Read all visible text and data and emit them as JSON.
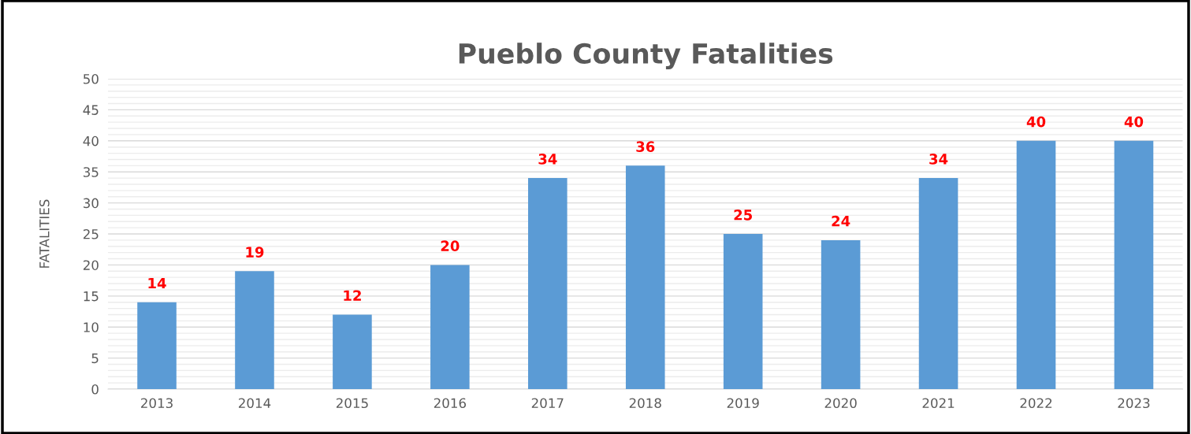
{
  "chart_data": {
    "type": "bar",
    "title": "Pueblo County Fatalities",
    "ylabel": "FATALITIES",
    "categories": [
      "2013",
      "2014",
      "2015",
      "2016",
      "2017",
      "2018",
      "2019",
      "2020",
      "2021",
      "2022",
      "2023"
    ],
    "values": [
      14,
      19,
      12,
      20,
      34,
      36,
      25,
      24,
      34,
      40,
      40
    ],
    "color": "#5b9bd5",
    "ylim": [
      0,
      50
    ],
    "yticks": [
      0,
      {
        "value": 1,
        "label": null
      },
      {
        "value": 2,
        "label": null
      },
      {
        "value": 3,
        "label": null
      },
      {
        "value": 4,
        "label": null
      },
      5,
      {
        "value": 6,
        "label": null
      },
      {
        "value": 7,
        "label": null
      },
      {
        "value": 8,
        "label": null
      },
      {
        "value": 9,
        "label": null
      },
      10,
      {
        "value": 11,
        "label": null
      },
      {
        "value": 12,
        "label": null
      },
      {
        "value": 13,
        "label": null
      },
      {
        "value": 14,
        "label": null
      },
      15,
      {
        "value": 16,
        "label": null
      },
      {
        "value": 17,
        "label": null
      },
      {
        "value": 18,
        "label": null
      },
      {
        "value": 19,
        "label": null
      },
      20,
      {
        "value": 21,
        "label": null
      },
      {
        "value": 22,
        "label": null
      },
      {
        "value": 23,
        "label": null
      },
      {
        "value": 24,
        "label": null
      },
      25,
      {
        "value": 26,
        "label": null
      },
      {
        "value": 27,
        "label": null
      },
      {
        "value": 28,
        "label": null
      },
      {
        "value": 29,
        "label": null
      },
      30,
      {
        "value": 31,
        "label": null
      },
      {
        "value": 32,
        "label": null
      },
      {
        "value": 33,
        "label": null
      },
      {
        "value": 34,
        "label": null
      },
      35,
      {
        "value": 36,
        "label": null
      },
      {
        "value": 37,
        "label": null
      },
      {
        "value": 38,
        "label": null
      },
      {
        "value": 39,
        "label": null
      },
      40,
      {
        "value": 41,
        "label": null
      },
      {
        "value": 42,
        "label": null
      },
      {
        "value": 43,
        "label": null
      },
      {
        "value": 44,
        "label": null
      },
      45,
      {
        "value": 46,
        "label": null
      },
      {
        "value": 47,
        "label": null
      },
      {
        "value": 48,
        "label": null
      },
      {
        "value": 49,
        "label": null
      },
      50
    ],
    "grid": "y",
    "legend": false,
    "data_labels": true
  }
}
